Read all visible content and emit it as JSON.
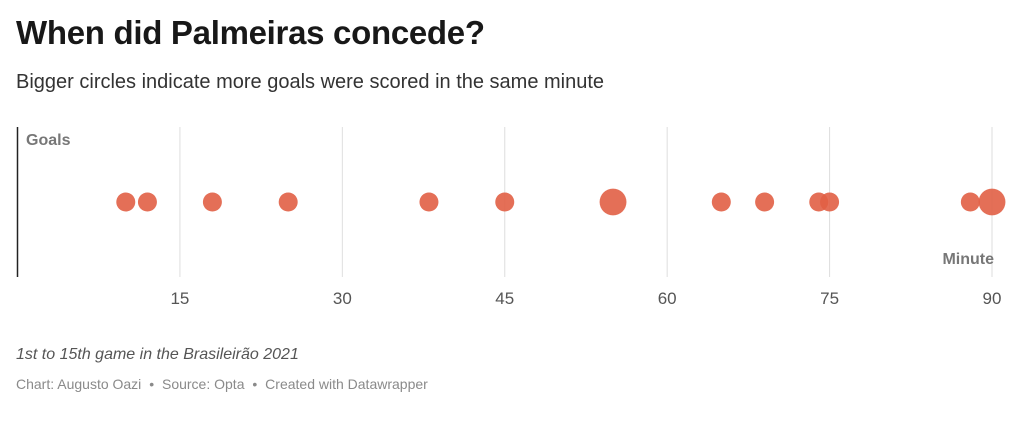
{
  "title": "When did Palmeiras concede?",
  "subtitle": "Bigger circles indicate more goals were scored in the same minute",
  "note": "1st to 15th game in the Brasileirão 2021",
  "footer": {
    "chart_credit": "Chart: Augusto Oazi",
    "source": "Source: Opta",
    "tool": "Created with Datawrapper",
    "separator": "•"
  },
  "colors": {
    "dot": "#e15f45",
    "grid": "#dedede",
    "axis": "#222222",
    "axis_label": "#777777",
    "tick_label": "#555555"
  },
  "chart_data": {
    "type": "scatter",
    "ylabel": "Goals",
    "xlabel": "Minute",
    "xlim": [
      0,
      90
    ],
    "xticks": [
      15,
      30,
      45,
      60,
      75,
      90
    ],
    "grid": true,
    "points": [
      {
        "minute": 10,
        "goals": 1
      },
      {
        "minute": 12,
        "goals": 1
      },
      {
        "minute": 18,
        "goals": 1
      },
      {
        "minute": 25,
        "goals": 1
      },
      {
        "minute": 38,
        "goals": 1
      },
      {
        "minute": 45,
        "goals": 1
      },
      {
        "minute": 55,
        "goals": 2
      },
      {
        "minute": 65,
        "goals": 1
      },
      {
        "minute": 69,
        "goals": 1
      },
      {
        "minute": 74,
        "goals": 1
      },
      {
        "minute": 75,
        "goals": 1
      },
      {
        "minute": 88,
        "goals": 1
      },
      {
        "minute": 90,
        "goals": 2
      }
    ]
  }
}
